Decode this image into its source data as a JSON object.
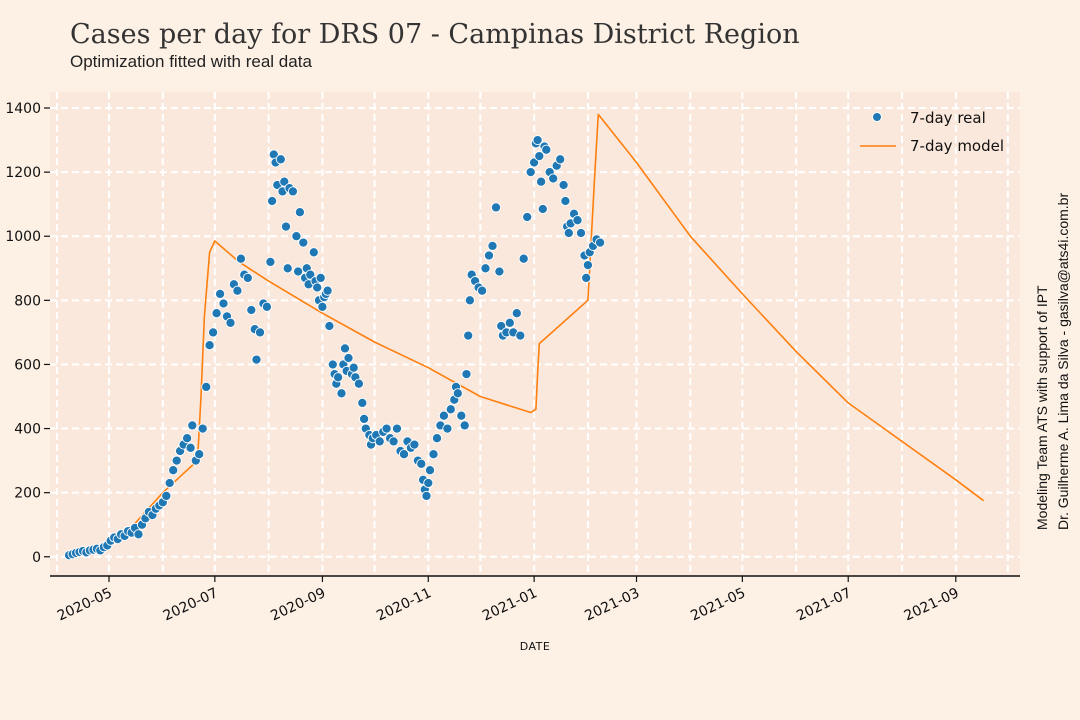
{
  "chart_data": {
    "type": "line",
    "title": "Cases per day for DRS 07 - Campinas District Region",
    "subtitle": "Optimization fitted with real data",
    "xlabel": "DATE",
    "ylabel": "",
    "ylim": [
      -60,
      1450
    ],
    "xlim": [
      "2020-03-28",
      "2021-10-08"
    ],
    "y_ticks": [
      0,
      200,
      400,
      600,
      800,
      1000,
      1200,
      1400
    ],
    "y_tick_labels": [
      "0",
      "200",
      "400",
      "600",
      "800",
      "1000",
      "1200",
      "1400"
    ],
    "x_ticks": [
      "2020-05-01",
      "2020-07-01",
      "2020-09-01",
      "2020-11-01",
      "2021-01-01",
      "2021-03-01",
      "2021-05-01",
      "2021-07-01",
      "2021-09-01"
    ],
    "x_tick_labels": [
      "2020-05",
      "2020-07",
      "2020-09",
      "2020-11",
      "2021-01",
      "2021-03",
      "2021-05",
      "2021-07",
      "2021-09"
    ],
    "grid": true,
    "legend_position": "top-right",
    "colors": {
      "real": "#1f77b4",
      "model": "#ff7f0e",
      "background": "#fdf1e6",
      "plot_area": "#fbe8dc",
      "grid": "#ffffff"
    },
    "series": [
      {
        "name": "7-day real",
        "kind": "scatter",
        "points": [
          [
            "2020-04-08",
            5
          ],
          [
            "2020-04-10",
            8
          ],
          [
            "2020-04-12",
            12
          ],
          [
            "2020-04-14",
            15
          ],
          [
            "2020-04-16",
            18
          ],
          [
            "2020-04-18",
            14
          ],
          [
            "2020-04-20",
            20
          ],
          [
            "2020-04-22",
            22
          ],
          [
            "2020-04-24",
            25
          ],
          [
            "2020-04-26",
            20
          ],
          [
            "2020-04-28",
            30
          ],
          [
            "2020-04-30",
            35
          ],
          [
            "2020-05-02",
            50
          ],
          [
            "2020-05-04",
            60
          ],
          [
            "2020-05-06",
            55
          ],
          [
            "2020-05-08",
            70
          ],
          [
            "2020-05-10",
            65
          ],
          [
            "2020-05-12",
            80
          ],
          [
            "2020-05-14",
            75
          ],
          [
            "2020-05-16",
            90
          ],
          [
            "2020-05-18",
            70
          ],
          [
            "2020-05-20",
            100
          ],
          [
            "2020-05-22",
            120
          ],
          [
            "2020-05-24",
            140
          ],
          [
            "2020-05-26",
            130
          ],
          [
            "2020-05-28",
            150
          ],
          [
            "2020-05-30",
            160
          ],
          [
            "2020-06-01",
            170
          ],
          [
            "2020-06-03",
            190
          ],
          [
            "2020-06-05",
            230
          ],
          [
            "2020-06-07",
            270
          ],
          [
            "2020-06-09",
            300
          ],
          [
            "2020-06-11",
            330
          ],
          [
            "2020-06-13",
            350
          ],
          [
            "2020-06-15",
            370
          ],
          [
            "2020-06-17",
            340
          ],
          [
            "2020-06-18",
            410
          ],
          [
            "2020-06-20",
            300
          ],
          [
            "2020-06-22",
            320
          ],
          [
            "2020-06-24",
            400
          ],
          [
            "2020-06-26",
            530
          ],
          [
            "2020-06-28",
            660
          ],
          [
            "2020-06-30",
            700
          ],
          [
            "2020-07-02",
            760
          ],
          [
            "2020-07-04",
            820
          ],
          [
            "2020-07-06",
            790
          ],
          [
            "2020-07-08",
            750
          ],
          [
            "2020-07-10",
            730
          ],
          [
            "2020-07-12",
            850
          ],
          [
            "2020-07-14",
            830
          ],
          [
            "2020-07-16",
            930
          ],
          [
            "2020-07-18",
            880
          ],
          [
            "2020-07-20",
            870
          ],
          [
            "2020-07-22",
            770
          ],
          [
            "2020-07-24",
            710
          ],
          [
            "2020-07-25",
            615
          ],
          [
            "2020-07-27",
            700
          ],
          [
            "2020-07-29",
            790
          ],
          [
            "2020-07-31",
            780
          ],
          [
            "2020-08-02",
            920
          ],
          [
            "2020-08-03",
            1110
          ],
          [
            "2020-08-04",
            1255
          ],
          [
            "2020-08-05",
            1230
          ],
          [
            "2020-08-06",
            1160
          ],
          [
            "2020-08-08",
            1240
          ],
          [
            "2020-08-09",
            1140
          ],
          [
            "2020-08-10",
            1170
          ],
          [
            "2020-08-11",
            1030
          ],
          [
            "2020-08-12",
            900
          ],
          [
            "2020-08-13",
            1150
          ],
          [
            "2020-08-15",
            1140
          ],
          [
            "2020-08-17",
            1000
          ],
          [
            "2020-08-18",
            890
          ],
          [
            "2020-08-19",
            1075
          ],
          [
            "2020-08-21",
            980
          ],
          [
            "2020-08-22",
            870
          ],
          [
            "2020-08-23",
            900
          ],
          [
            "2020-08-24",
            850
          ],
          [
            "2020-08-25",
            880
          ],
          [
            "2020-08-27",
            950
          ],
          [
            "2020-08-28",
            860
          ],
          [
            "2020-08-29",
            840
          ],
          [
            "2020-08-30",
            800
          ],
          [
            "2020-08-31",
            870
          ],
          [
            "2020-09-01",
            780
          ],
          [
            "2020-09-02",
            810
          ],
          [
            "2020-09-03",
            820
          ],
          [
            "2020-09-04",
            830
          ],
          [
            "2020-09-05",
            720
          ],
          [
            "2020-09-07",
            600
          ],
          [
            "2020-09-08",
            570
          ],
          [
            "2020-09-09",
            540
          ],
          [
            "2020-09-10",
            560
          ],
          [
            "2020-09-12",
            510
          ],
          [
            "2020-09-13",
            600
          ],
          [
            "2020-09-14",
            650
          ],
          [
            "2020-09-15",
            580
          ],
          [
            "2020-09-16",
            620
          ],
          [
            "2020-09-18",
            570
          ],
          [
            "2020-09-19",
            590
          ],
          [
            "2020-09-20",
            560
          ],
          [
            "2020-09-22",
            540
          ],
          [
            "2020-09-24",
            480
          ],
          [
            "2020-09-25",
            430
          ],
          [
            "2020-09-26",
            400
          ],
          [
            "2020-09-28",
            380
          ],
          [
            "2020-09-29",
            350
          ],
          [
            "2020-09-30",
            370
          ],
          [
            "2020-10-02",
            380
          ],
          [
            "2020-10-04",
            360
          ],
          [
            "2020-10-06",
            390
          ],
          [
            "2020-10-08",
            400
          ],
          [
            "2020-10-10",
            370
          ],
          [
            "2020-10-12",
            360
          ],
          [
            "2020-10-14",
            400
          ],
          [
            "2020-10-16",
            330
          ],
          [
            "2020-10-18",
            320
          ],
          [
            "2020-10-20",
            360
          ],
          [
            "2020-10-22",
            340
          ],
          [
            "2020-10-24",
            350
          ],
          [
            "2020-10-26",
            300
          ],
          [
            "2020-10-28",
            290
          ],
          [
            "2020-10-29",
            240
          ],
          [
            "2020-10-30",
            210
          ],
          [
            "2020-10-31",
            190
          ],
          [
            "2020-11-01",
            230
          ],
          [
            "2020-11-02",
            270
          ],
          [
            "2020-11-04",
            320
          ],
          [
            "2020-11-06",
            370
          ],
          [
            "2020-11-08",
            410
          ],
          [
            "2020-11-10",
            440
          ],
          [
            "2020-11-12",
            400
          ],
          [
            "2020-11-14",
            460
          ],
          [
            "2020-11-16",
            490
          ],
          [
            "2020-11-17",
            530
          ],
          [
            "2020-11-18",
            510
          ],
          [
            "2020-11-20",
            440
          ],
          [
            "2020-11-22",
            410
          ],
          [
            "2020-11-23",
            570
          ],
          [
            "2020-11-24",
            690
          ],
          [
            "2020-11-25",
            800
          ],
          [
            "2020-11-26",
            880
          ],
          [
            "2020-11-28",
            860
          ],
          [
            "2020-11-30",
            840
          ],
          [
            "2020-12-02",
            830
          ],
          [
            "2020-12-04",
            900
          ],
          [
            "2020-12-06",
            940
          ],
          [
            "2020-12-08",
            970
          ],
          [
            "2020-12-10",
            1090
          ],
          [
            "2020-12-12",
            890
          ],
          [
            "2020-12-13",
            720
          ],
          [
            "2020-12-14",
            690
          ],
          [
            "2020-12-16",
            700
          ],
          [
            "2020-12-18",
            730
          ],
          [
            "2020-12-20",
            700
          ],
          [
            "2020-12-22",
            760
          ],
          [
            "2020-12-24",
            690
          ],
          [
            "2020-12-26",
            930
          ],
          [
            "2020-12-28",
            1060
          ],
          [
            "2020-12-30",
            1200
          ],
          [
            "2021-01-01",
            1230
          ],
          [
            "2021-01-02",
            1290
          ],
          [
            "2021-01-03",
            1300
          ],
          [
            "2021-01-04",
            1250
          ],
          [
            "2021-01-05",
            1170
          ],
          [
            "2021-01-06",
            1085
          ],
          [
            "2021-01-07",
            1280
          ],
          [
            "2021-01-08",
            1270
          ],
          [
            "2021-01-10",
            1200
          ],
          [
            "2021-01-12",
            1180
          ],
          [
            "2021-01-14",
            1220
          ],
          [
            "2021-01-16",
            1240
          ],
          [
            "2021-01-18",
            1160
          ],
          [
            "2021-01-19",
            1110
          ],
          [
            "2021-01-20",
            1030
          ],
          [
            "2021-01-21",
            1010
          ],
          [
            "2021-01-22",
            1040
          ],
          [
            "2021-01-24",
            1070
          ],
          [
            "2021-01-26",
            1050
          ],
          [
            "2021-01-28",
            1010
          ],
          [
            "2021-01-30",
            940
          ],
          [
            "2021-01-31",
            870
          ],
          [
            "2021-02-01",
            910
          ],
          [
            "2021-02-02",
            950
          ],
          [
            "2021-02-04",
            970
          ],
          [
            "2021-02-06",
            990
          ],
          [
            "2021-02-08",
            980
          ]
        ]
      },
      {
        "name": "7-day model",
        "kind": "line",
        "points": [
          [
            "2020-04-12",
            5
          ],
          [
            "2020-04-22",
            15
          ],
          [
            "2020-05-02",
            40
          ],
          [
            "2020-05-12",
            80
          ],
          [
            "2020-05-22",
            140
          ],
          [
            "2020-06-01",
            200
          ],
          [
            "2020-06-11",
            250
          ],
          [
            "2020-06-21",
            300
          ],
          [
            "2020-06-23",
            500
          ],
          [
            "2020-06-25",
            750
          ],
          [
            "2020-06-28",
            950
          ],
          [
            "2020-07-01",
            985
          ],
          [
            "2020-07-15",
            920
          ],
          [
            "2020-08-01",
            860
          ],
          [
            "2020-09-01",
            760
          ],
          [
            "2020-10-01",
            670
          ],
          [
            "2020-11-01",
            590
          ],
          [
            "2020-12-01",
            500
          ],
          [
            "2020-12-30",
            450
          ],
          [
            "2021-01-02",
            460
          ],
          [
            "2021-01-03",
            570
          ],
          [
            "2021-01-04",
            665
          ],
          [
            "2021-02-01",
            800
          ],
          [
            "2021-02-03",
            1000
          ],
          [
            "2021-02-05",
            1200
          ],
          [
            "2021-02-07",
            1380
          ],
          [
            "2021-03-01",
            1230
          ],
          [
            "2021-04-01",
            1000
          ],
          [
            "2021-05-01",
            820
          ],
          [
            "2021-06-01",
            640
          ],
          [
            "2021-07-01",
            480
          ],
          [
            "2021-08-01",
            360
          ],
          [
            "2021-09-01",
            240
          ],
          [
            "2021-09-17",
            175
          ]
        ]
      }
    ]
  },
  "side_note": {
    "line1": "Modeling Team ATS with support of IPT",
    "line2": "Dr. Guilherme A. Lima da Silva - gasilva@ats4i.com.br"
  }
}
